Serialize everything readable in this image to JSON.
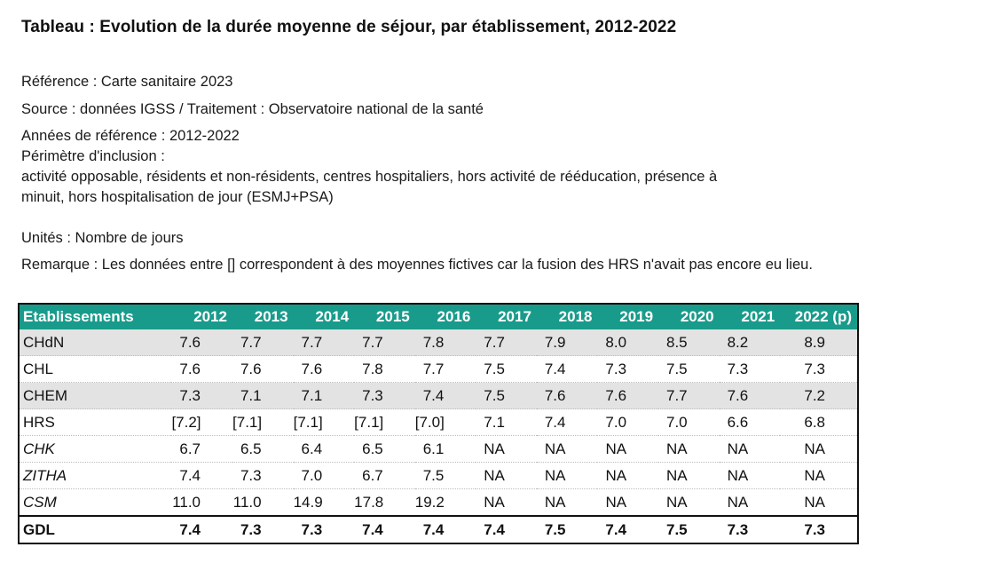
{
  "title": "Tableau : Evolution de la durée moyenne de séjour, par établissement, 2012-2022",
  "meta": {
    "reference": "Référence : Carte sanitaire 2023",
    "source": "Source : données IGSS / Traitement : Observatoire national de la santé",
    "years": "Années de référence : 2012-2022",
    "perimeter_label": "Périmètre d'inclusion :",
    "perimeter_line1": "activité opposable, résidents et non-résidents, centres hospitaliers, hors activité de rééducation, présence à",
    "perimeter_line2": "minuit, hors hospitalisation de jour (ESMJ+PSA)",
    "units": "Unités : Nombre de jours",
    "remark": "Remarque : Les données entre [] correspondent à des moyennes fictives car la fusion des HRS n'avait pas encore eu lieu."
  },
  "table": {
    "header_color": "#199b8b",
    "columns": [
      "Etablissements",
      "2012",
      "2013",
      "2014",
      "2015",
      "2016",
      "2017",
      "2018",
      "2019",
      "2020",
      "2021",
      "2022 (p)"
    ],
    "rows": [
      [
        "CHdN",
        "7.6",
        "7.7",
        "7.7",
        "7.7",
        "7.8",
        "7.7",
        "7.9",
        "8.0",
        "8.5",
        "8.2",
        "8.9"
      ],
      [
        "CHL",
        "7.6",
        "7.6",
        "7.6",
        "7.8",
        "7.7",
        "7.5",
        "7.4",
        "7.3",
        "7.5",
        "7.3",
        "7.3"
      ],
      [
        "CHEM",
        "7.3",
        "7.1",
        "7.1",
        "7.3",
        "7.4",
        "7.5",
        "7.6",
        "7.6",
        "7.7",
        "7.6",
        "7.2"
      ],
      [
        "HRS",
        "[7.2]",
        "[7.1]",
        "[7.1]",
        "[7.1]",
        "[7.0]",
        "7.1",
        "7.4",
        "7.0",
        "7.0",
        "6.6",
        "6.8"
      ],
      [
        "CHK",
        "6.7",
        "6.5",
        "6.4",
        "6.5",
        "6.1",
        "NA",
        "NA",
        "NA",
        "NA",
        "NA",
        "NA"
      ],
      [
        "ZITHA",
        "7.4",
        "7.3",
        "7.0",
        "6.7",
        "7.5",
        "NA",
        "NA",
        "NA",
        "NA",
        "NA",
        "NA"
      ],
      [
        "CSM",
        "11.0",
        "11.0",
        "14.9",
        "17.8",
        "19.2",
        "NA",
        "NA",
        "NA",
        "NA",
        "NA",
        "NA"
      ],
      [
        "GDL",
        "7.4",
        "7.3",
        "7.3",
        "7.4",
        "7.4",
        "7.4",
        "7.5",
        "7.4",
        "7.5",
        "7.3",
        "7.3"
      ]
    ]
  }
}
